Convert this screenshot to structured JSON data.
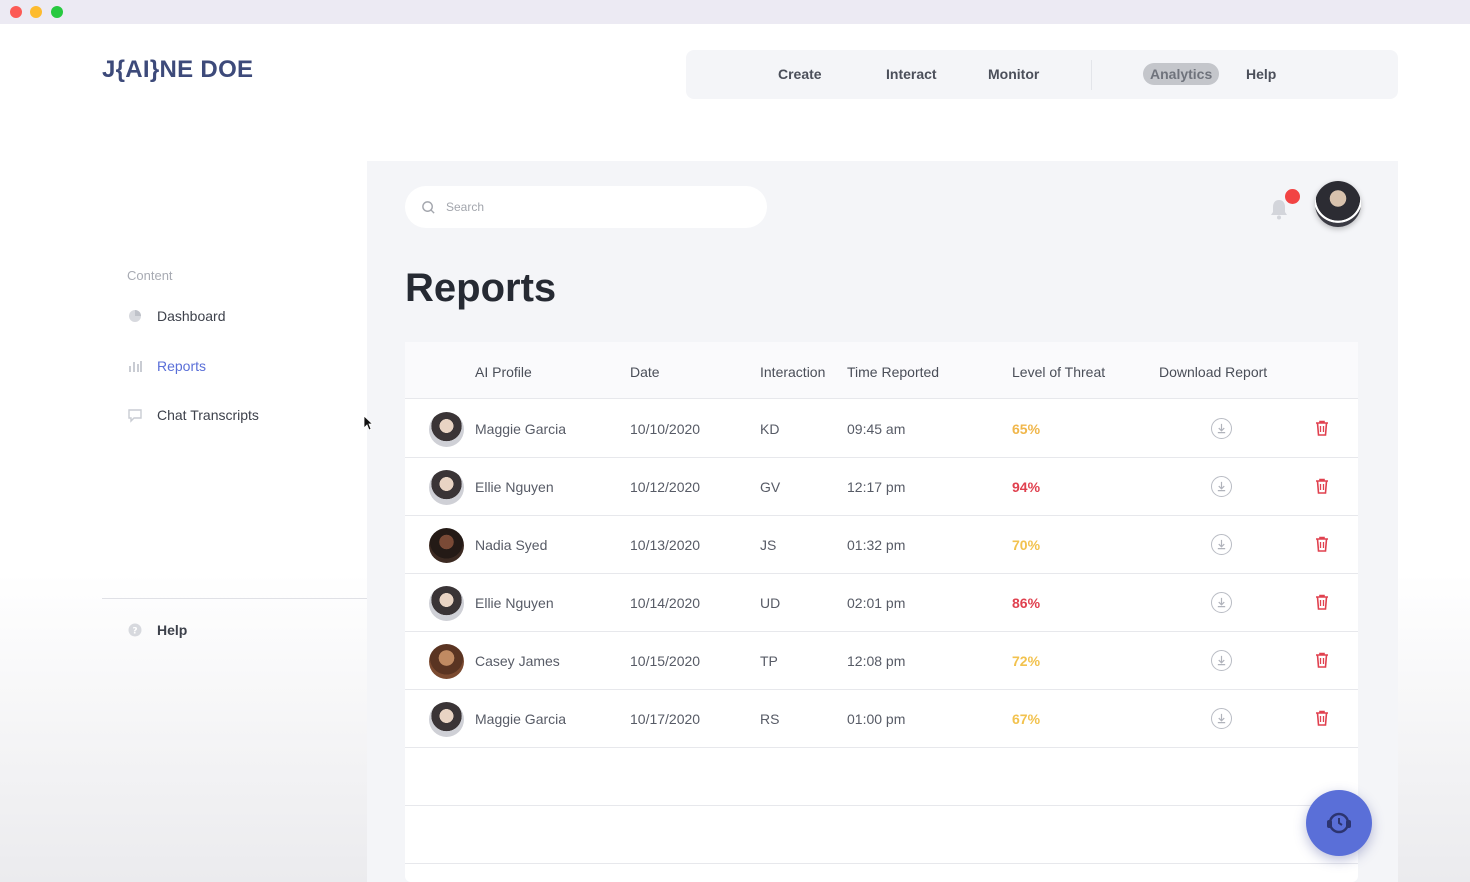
{
  "brand": {
    "logo": "J{AI}NE DOE"
  },
  "topnav": {
    "items": [
      {
        "label": "Create"
      },
      {
        "label": "Interact"
      },
      {
        "label": "Monitor"
      },
      {
        "label": "Analytics"
      },
      {
        "label": "Help"
      }
    ],
    "active": "Analytics"
  },
  "sidebar": {
    "section_label": "Content",
    "items": [
      {
        "label": "Dashboard",
        "icon": "pie-chart-icon"
      },
      {
        "label": "Reports",
        "icon": "bar-chart-icon"
      },
      {
        "label": "Chat Transcripts",
        "icon": "chat-bubble-icon"
      }
    ],
    "help_label": "Help"
  },
  "search": {
    "placeholder": "Search"
  },
  "page": {
    "title": "Reports"
  },
  "table": {
    "headers": {
      "profile": "AI Profile",
      "date": "Date",
      "interaction": "Interaction",
      "time": "Time Reported",
      "threat": "Level of Threat",
      "download": "Download Report"
    },
    "rows": [
      {
        "name": "Maggie Garcia",
        "date": "10/10/2020",
        "interaction": "KD",
        "time": "09:45 am",
        "threat": "65%",
        "threat_color": "#f0b64a"
      },
      {
        "name": "Ellie Nguyen",
        "date": "10/12/2020",
        "interaction": "GV",
        "time": "12:17 pm",
        "threat": "94%",
        "threat_color": "#e0414f"
      },
      {
        "name": "Nadia Syed",
        "date": "10/13/2020",
        "interaction": "JS",
        "time": "01:32 pm",
        "threat": "70%",
        "threat_color": "#f2c24e"
      },
      {
        "name": "Ellie Nguyen",
        "date": "10/14/2020",
        "interaction": "UD",
        "time": "02:01 pm",
        "threat": "86%",
        "threat_color": "#e0414f"
      },
      {
        "name": "Casey James",
        "date": "10/15/2020",
        "interaction": "TP",
        "time": "12:08 pm",
        "threat": "72%",
        "threat_color": "#f2c24e"
      },
      {
        "name": "Maggie Garcia",
        "date": "10/17/2020",
        "interaction": "RS",
        "time": "01:00 pm",
        "threat": "67%",
        "threat_color": "#f2c24e"
      }
    ]
  },
  "colors": {
    "accent": "#5a6fd8",
    "danger": "#e0414f",
    "warning": "#f2c24e"
  }
}
